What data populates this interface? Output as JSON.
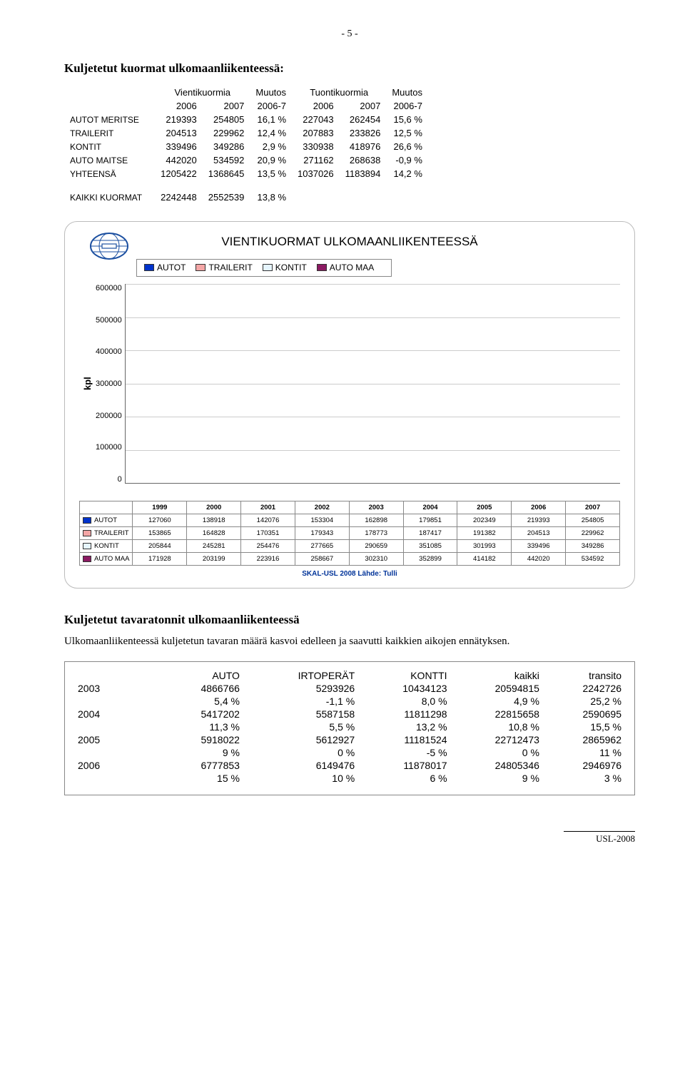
{
  "page_number": "- 5 -",
  "section1": {
    "title": "Kuljetetut kuormat ulkomaanliikenteessä:",
    "col_groups": [
      "Vientikuormia",
      "Muutos",
      "Tuontikuormia",
      "Muutos"
    ],
    "years": [
      "2006",
      "2007",
      "2006-7",
      "2006",
      "2007",
      "2006-7"
    ],
    "rows": [
      {
        "label": "AUTOT MERITSE",
        "cells": [
          "219393",
          "254805",
          "16,1 %",
          "227043",
          "262454",
          "15,6 %"
        ]
      },
      {
        "label": "TRAILERIT",
        "cells": [
          "204513",
          "229962",
          "12,4 %",
          "207883",
          "233826",
          "12,5 %"
        ]
      },
      {
        "label": "KONTIT",
        "cells": [
          "339496",
          "349286",
          "2,9 %",
          "330938",
          "418976",
          "26,6 %"
        ]
      },
      {
        "label": "AUTO MAITSE",
        "cells": [
          "442020",
          "534592",
          "20,9 %",
          "271162",
          "268638",
          "-0,9 %"
        ]
      },
      {
        "label": "YHTEENSÄ",
        "cells": [
          "1205422",
          "1368645",
          "13,5 %",
          "1037026",
          "1183894",
          "14,2 %"
        ]
      }
    ],
    "kaikki": {
      "label": "KAIKKI KUORMAT",
      "cells": [
        "2242448",
        "2552539",
        "13,8 %"
      ]
    }
  },
  "chart": {
    "title": "VIENTIKUORMAT ULKOMAANLIIKENTEESSÄ",
    "y_label": "kpl",
    "y_max": 600000,
    "y_ticks": [
      "600000",
      "500000",
      "400000",
      "300000",
      "200000",
      "100000",
      "0"
    ],
    "years": [
      "1999",
      "2000",
      "2001",
      "2002",
      "2003",
      "2004",
      "2005",
      "2006",
      "2007"
    ],
    "series": [
      {
        "name": "AUTOT",
        "color": "#0033cc",
        "values": [
          127060,
          138918,
          142076,
          153304,
          162898,
          179851,
          202349,
          219393,
          254805
        ]
      },
      {
        "name": "TRAILERIT",
        "color": "#f4a6a6",
        "values": [
          153865,
          164828,
          170351,
          179343,
          178773,
          187417,
          191382,
          204513,
          229962
        ]
      },
      {
        "name": "KONTIT",
        "color": "#e6f5ff",
        "values": [
          205844,
          245281,
          254476,
          277665,
          290659,
          351085,
          301993,
          339496,
          349286
        ]
      },
      {
        "name": "AUTO MAA",
        "color": "#8b1a62",
        "values": [
          171928,
          203199,
          223916,
          258667,
          302310,
          352899,
          414182,
          442020,
          534592
        ]
      }
    ],
    "footer": "SKAL-USL 2008   Lähde: Tulli"
  },
  "section2": {
    "title": "Kuljetetut tavaratonnit ulkomaanliikenteessä",
    "text": "Ulkomaanliikenteessä kuljetetun tavaran määrä kasvoi edelleen ja saavutti kaikkien aikojen ennätyksen.",
    "headers": [
      "AUTO",
      "IRTOPERÄT",
      "KONTTI",
      "kaikki",
      "transito"
    ],
    "rows": [
      {
        "year": "2003",
        "vals": [
          "4866766",
          "5293926",
          "10434123",
          "20594815",
          "2242726"
        ],
        "pct": [
          "5,4 %",
          "-1,1 %",
          "8,0 %",
          "4,9 %",
          "25,2 %"
        ]
      },
      {
        "year": "2004",
        "vals": [
          "5417202",
          "5587158",
          "11811298",
          "22815658",
          "2590695"
        ],
        "pct": [
          "11,3 %",
          "5,5 %",
          "13,2 %",
          "10,8 %",
          "15,5 %"
        ]
      },
      {
        "year": "2005",
        "vals": [
          "5918022",
          "5612927",
          "11181524",
          "22712473",
          "2865962"
        ],
        "pct": [
          "9 %",
          "0 %",
          "-5 %",
          "0 %",
          "11 %"
        ]
      },
      {
        "year": "2006",
        "vals": [
          "6777853",
          "6149476",
          "11878017",
          "24805346",
          "2946976"
        ],
        "pct": [
          "15 %",
          "10 %",
          "6 %",
          "9 %",
          "3 %"
        ]
      }
    ]
  },
  "footer": "USL-2008"
}
